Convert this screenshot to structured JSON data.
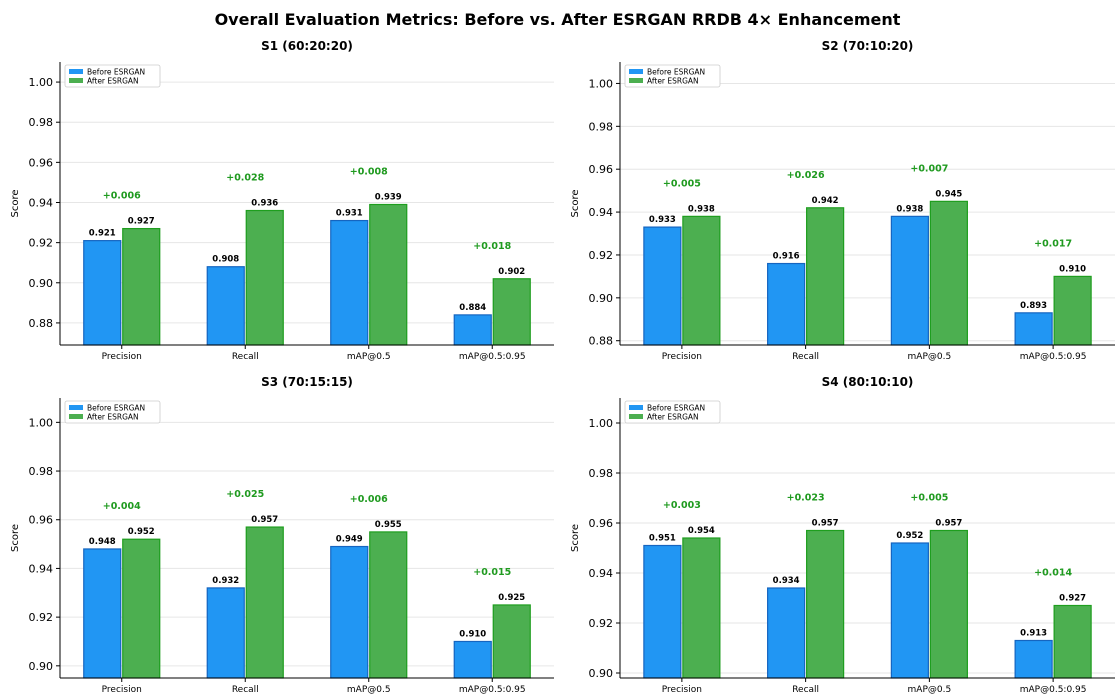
{
  "title": "Overall Evaluation Metrics: Before vs. After ESRGAN RRDB 4× Enhancement",
  "colors": {
    "before": "#2196f3",
    "before_edge": "#1565c0",
    "after": "#4caf50",
    "after_edge": "#1e9e1e",
    "delta_text": "#1f9a1f",
    "grid": "#e6e6e6"
  },
  "chart_data": [
    {
      "type": "bar",
      "title": "S1 (60:20:20)",
      "ylabel": "Score",
      "categories": [
        "Precision",
        "Recall",
        "mAP@0.5",
        "mAP@0.5:0.95"
      ],
      "series": [
        {
          "name": "Before ESRGAN",
          "values": [
            0.921,
            0.908,
            0.931,
            0.884
          ],
          "labels": [
            "0.921",
            "0.908",
            "0.931",
            "0.884"
          ]
        },
        {
          "name": "After ESRGAN",
          "values": [
            0.927,
            0.936,
            0.939,
            0.902
          ],
          "labels": [
            "0.927",
            "0.936",
            "0.939",
            "0.902"
          ]
        }
      ],
      "deltas": [
        "+0.006",
        "+0.028",
        "+0.008",
        "+0.018"
      ],
      "ylim": [
        0.869,
        1.01
      ],
      "yticks": [
        0.88,
        0.9,
        0.92,
        0.94,
        0.96,
        0.98,
        1.0
      ],
      "ytick_labels": [
        "0.88",
        "0.90",
        "0.92",
        "0.94",
        "0.96",
        "0.98",
        "1.00"
      ],
      "grid": true,
      "legend": "top-left"
    },
    {
      "type": "bar",
      "title": "S2 (70:10:20)",
      "ylabel": "Score",
      "categories": [
        "Precision",
        "Recall",
        "mAP@0.5",
        "mAP@0.5:0.95"
      ],
      "series": [
        {
          "name": "Before ESRGAN",
          "values": [
            0.933,
            0.916,
            0.938,
            0.893
          ],
          "labels": [
            "0.933",
            "0.916",
            "0.938",
            "0.893"
          ]
        },
        {
          "name": "After ESRGAN",
          "values": [
            0.938,
            0.942,
            0.945,
            0.91
          ],
          "labels": [
            "0.938",
            "0.942",
            "0.945",
            "0.910"
          ]
        }
      ],
      "deltas": [
        "+0.005",
        "+0.026",
        "+0.007",
        "+0.017"
      ],
      "ylim": [
        0.878,
        1.01
      ],
      "yticks": [
        0.88,
        0.9,
        0.92,
        0.94,
        0.96,
        0.98,
        1.0
      ],
      "ytick_labels": [
        "0.88",
        "0.90",
        "0.92",
        "0.94",
        "0.96",
        "0.98",
        "1.00"
      ],
      "grid": true,
      "legend": "top-left"
    },
    {
      "type": "bar",
      "title": "S3 (70:15:15)",
      "ylabel": "Score",
      "categories": [
        "Precision",
        "Recall",
        "mAP@0.5",
        "mAP@0.5:0.95"
      ],
      "series": [
        {
          "name": "Before ESRGAN",
          "values": [
            0.948,
            0.932,
            0.949,
            0.91
          ],
          "labels": [
            "0.948",
            "0.932",
            "0.949",
            "0.910"
          ]
        },
        {
          "name": "After ESRGAN",
          "values": [
            0.952,
            0.957,
            0.955,
            0.925
          ],
          "labels": [
            "0.952",
            "0.957",
            "0.955",
            "0.925"
          ]
        }
      ],
      "deltas": [
        "+0.004",
        "+0.025",
        "+0.006",
        "+0.015"
      ],
      "ylim": [
        0.895,
        1.01
      ],
      "yticks": [
        0.9,
        0.92,
        0.94,
        0.96,
        0.98,
        1.0
      ],
      "ytick_labels": [
        "0.90",
        "0.92",
        "0.94",
        "0.96",
        "0.98",
        "1.00"
      ],
      "grid": true,
      "legend": "top-left"
    },
    {
      "type": "bar",
      "title": "S4 (80:10:10)",
      "ylabel": "Score",
      "categories": [
        "Precision",
        "Recall",
        "mAP@0.5",
        "mAP@0.5:0.95"
      ],
      "series": [
        {
          "name": "Before ESRGAN",
          "values": [
            0.951,
            0.934,
            0.952,
            0.913
          ],
          "labels": [
            "0.951",
            "0.934",
            "0.952",
            "0.913"
          ]
        },
        {
          "name": "After ESRGAN",
          "values": [
            0.954,
            0.957,
            0.957,
            0.927
          ],
          "labels": [
            "0.954",
            "0.957",
            "0.957",
            "0.927"
          ]
        }
      ],
      "deltas": [
        "+0.003",
        "+0.023",
        "+0.005",
        "+0.014"
      ],
      "ylim": [
        0.898,
        1.01
      ],
      "yticks": [
        0.9,
        0.92,
        0.94,
        0.96,
        0.98,
        1.0
      ],
      "ytick_labels": [
        "0.90",
        "0.92",
        "0.94",
        "0.96",
        "0.98",
        "1.00"
      ],
      "grid": true,
      "legend": "top-left"
    }
  ]
}
